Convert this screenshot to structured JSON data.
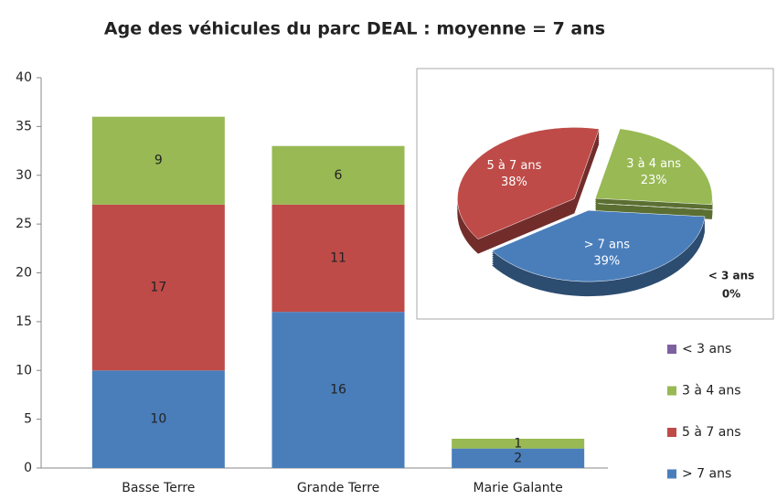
{
  "chart_data": [
    {
      "type": "stacked_bar",
      "title": "Age des véhicules du parc DEAL : moyenne = 7 ans",
      "categories": [
        "Basse Terre",
        "Grande Terre",
        "Marie Galante"
      ],
      "series": [
        {
          "name": "> 7 ans",
          "color": "#4a7ebb",
          "values": [
            10,
            16,
            2
          ]
        },
        {
          "name": "5 à 7 ans",
          "color": "#be4b48",
          "values": [
            17,
            11,
            0
          ]
        },
        {
          "name": "3 à 4 ans",
          "color": "#98b954",
          "values": [
            9,
            6,
            1
          ]
        },
        {
          "name": "< 3 ans",
          "color": "#7d60a0",
          "values": [
            0,
            0,
            0
          ]
        }
      ],
      "ylim": [
        0,
        40
      ],
      "yticks": [
        0,
        5,
        10,
        15,
        20,
        25,
        30,
        35,
        40
      ],
      "grid": false,
      "legend": "right"
    },
    {
      "type": "pie",
      "categories": [
        "< 3 ans",
        "3 à 4 ans",
        "5 à 7 ans",
        "> 7 ans"
      ],
      "values": [
        0,
        23,
        38,
        39
      ],
      "value_labels": [
        "0%",
        "23%",
        "38%",
        "39%"
      ],
      "colors": [
        "#7d60a0",
        "#98b954",
        "#be4b48",
        "#4a7ebb"
      ]
    }
  ]
}
